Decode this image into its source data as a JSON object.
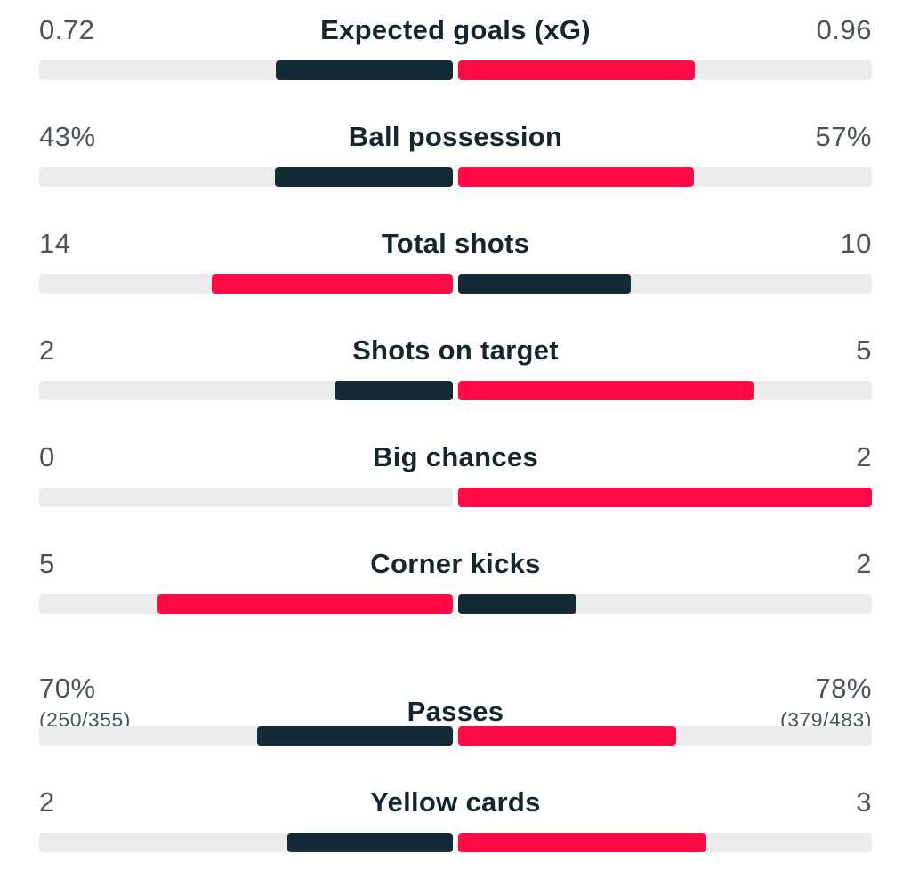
{
  "colors": {
    "leading": "#ff0a45",
    "trailing": "#142a36",
    "track": "#ececec"
  },
  "stats": [
    {
      "name": "Expected goals (xG)",
      "home": "0.72",
      "away": "0.96",
      "home_share": 0.4286,
      "away_share": 0.5714,
      "leader": "away"
    },
    {
      "name": "Ball possession",
      "home": "43%",
      "away": "57%",
      "home_share": 0.43,
      "away_share": 0.57,
      "leader": "away"
    },
    {
      "name": "Total shots",
      "home": "14",
      "away": "10",
      "home_share": 0.5833,
      "away_share": 0.4167,
      "leader": "home"
    },
    {
      "name": "Shots on target",
      "home": "2",
      "away": "5",
      "home_share": 0.2857,
      "away_share": 0.7143,
      "leader": "away"
    },
    {
      "name": "Big chances",
      "home": "0",
      "away": "2",
      "home_share": 0,
      "away_share": 1,
      "leader": "away"
    },
    {
      "name": "Corner kicks",
      "home": "5",
      "away": "2",
      "home_share": 0.7143,
      "away_share": 0.2857,
      "leader": "home"
    },
    {
      "name": "Passes",
      "home": "70%",
      "away": "78%",
      "home_detail": "(250/355)",
      "away_detail": "(379/483)",
      "home_share": 0.473,
      "away_share": 0.527,
      "leader": "away"
    },
    {
      "name": "Yellow cards",
      "home": "2",
      "away": "3",
      "home_share": 0.4,
      "away_share": 0.6,
      "leader": "away"
    }
  ]
}
